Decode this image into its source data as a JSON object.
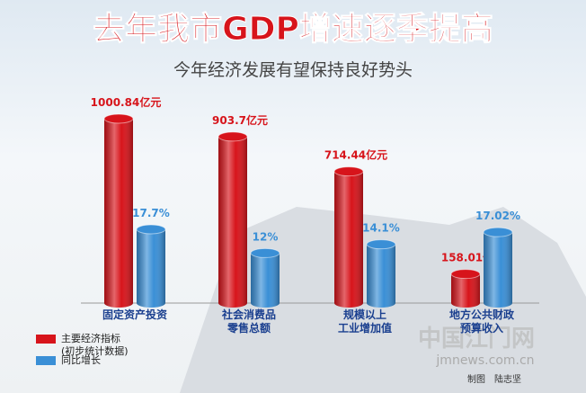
{
  "chart_data": {
    "type": "bar",
    "title": "去年我市GDP增速逐季提高",
    "subtitle": "今年经济发展有望保持良好势头",
    "categories": [
      "固定资产投资",
      "社会消费品\n零售总额",
      "规模以上\n工业增加值",
      "地方公共财政\n预算收入"
    ],
    "series": [
      {
        "name": "主要经济指标\n(初步统计数据)",
        "color": "#d7141b",
        "values": [
          1000.84,
          903.7,
          714.44,
          158.01
        ],
        "value_labels": [
          "1000.84亿元",
          "903.7亿元",
          "714.44亿元",
          "158.01亿元"
        ]
      },
      {
        "name": "同比增长",
        "color": "#3a8fd6",
        "values": [
          17.7,
          12,
          14.1,
          17.02
        ],
        "value_labels": [
          "17.7%",
          "12%",
          "14.1%",
          "17.02%"
        ]
      }
    ],
    "credit": "制图　陆志坚",
    "watermark": "中国江门网",
    "watermark_url": "jmnews.com.cn"
  }
}
